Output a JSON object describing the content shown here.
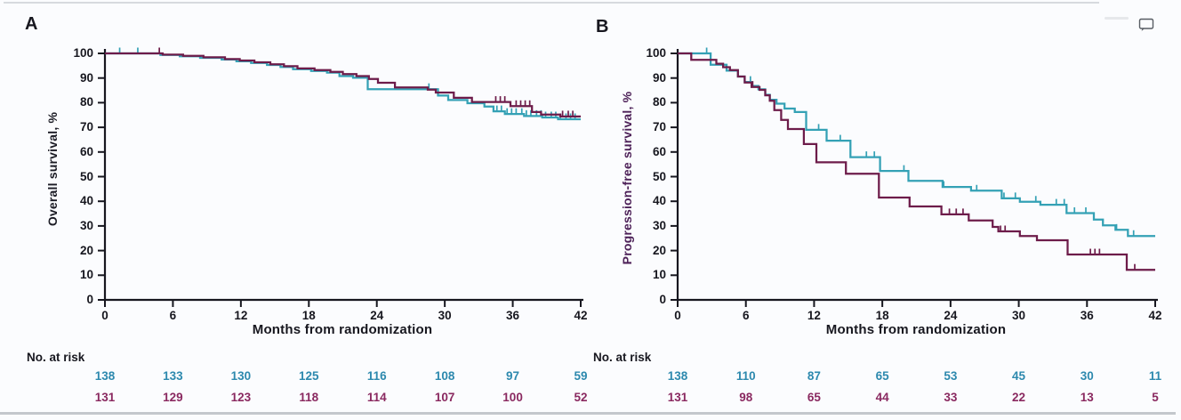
{
  "window": {
    "background": "#fbfcfe",
    "top_edge_color": "#d7dade",
    "bottom_edge_color": "#c3c7cc",
    "comment_icon": "speech-bubble-outline",
    "comment_icon_color": "#575c63"
  },
  "axis_color": "#17171f",
  "chart_data": [
    {
      "type": "line",
      "subtype": "kaplan-meier-step",
      "panel_label": "A",
      "ylabel": "Overall survival, %",
      "ylabel_color": "#1b1b24",
      "xlabel": "Months from randomization",
      "xlim": [
        0,
        42
      ],
      "ylim": [
        0,
        100
      ],
      "xticks": [
        0,
        6,
        12,
        18,
        24,
        30,
        36,
        42
      ],
      "yticks": [
        0,
        10,
        20,
        30,
        40,
        50,
        60,
        70,
        80,
        90,
        100
      ],
      "grid": false,
      "legend": "none",
      "series": [
        {
          "name": "teal",
          "color": "#34a1b5",
          "text_color": "#2d89ae",
          "steps": [
            [
              0,
              100
            ],
            [
              4.9,
              99.4
            ],
            [
              6.6,
              98.8
            ],
            [
              8.4,
              98.2
            ],
            [
              10.3,
              97.5
            ],
            [
              11.6,
              96.8
            ],
            [
              12.9,
              96.1
            ],
            [
              14.3,
              95.3
            ],
            [
              15.5,
              94.5
            ],
            [
              16.6,
              93.6
            ],
            [
              18.2,
              92.9
            ],
            [
              19.6,
              92.2
            ],
            [
              20.7,
              90.8
            ],
            [
              21.9,
              90.1
            ],
            [
              23.2,
              85.5
            ],
            [
              29.4,
              82.9
            ],
            [
              30.3,
              81.1
            ],
            [
              32.0,
              79.8
            ],
            [
              33.5,
              78.4
            ],
            [
              34.3,
              76.5
            ],
            [
              35.3,
              75.4
            ],
            [
              37.0,
              74.6
            ],
            [
              38.6,
              74.0
            ],
            [
              40.0,
              73.3
            ]
          ],
          "censor_months": [
            1.3,
            2.9,
            28.6,
            34.6,
            35.0,
            35.5,
            35.9,
            36.3,
            36.8,
            37.2,
            37.6,
            38.1,
            38.5,
            38.9,
            39.4,
            39.8,
            40.2,
            40.7,
            41.1,
            41.5
          ]
        },
        {
          "name": "maroon",
          "color": "#6d1c4a",
          "text_color": "#8a2960",
          "steps": [
            [
              0,
              100
            ],
            [
              5.1,
              99.5
            ],
            [
              6.9,
              99.0
            ],
            [
              8.7,
              98.4
            ],
            [
              10.6,
              97.7
            ],
            [
              11.9,
              97.1
            ],
            [
              13.2,
              96.4
            ],
            [
              14.6,
              95.6
            ],
            [
              15.8,
              94.8
            ],
            [
              17.0,
              93.9
            ],
            [
              18.5,
              93.2
            ],
            [
              19.9,
              92.5
            ],
            [
              21.0,
              91.6
            ],
            [
              22.2,
              90.8
            ],
            [
              23.3,
              89.6
            ],
            [
              24.1,
              88.1
            ],
            [
              25.6,
              86.2
            ],
            [
              28.5,
              85.3
            ],
            [
              29.2,
              84.1
            ],
            [
              30.8,
              82.0
            ],
            [
              32.4,
              80.3
            ],
            [
              35.8,
              78.6
            ],
            [
              37.7,
              76.2
            ],
            [
              38.5,
              75.2
            ],
            [
              40.2,
              74.4
            ]
          ],
          "censor_months": [
            4.8,
            34.5,
            34.9,
            35.3,
            36.3,
            36.7,
            37.1,
            37.5,
            40.4,
            40.9,
            41.3
          ]
        }
      ],
      "no_at_risk": {
        "label": "No. at risk",
        "rows": [
          {
            "series": "teal",
            "values": [
              138,
              133,
              130,
              125,
              116,
              108,
              97,
              59
            ]
          },
          {
            "series": "maroon",
            "values": [
              131,
              129,
              123,
              118,
              114,
              107,
              100,
              52
            ]
          }
        ]
      }
    },
    {
      "type": "line",
      "subtype": "kaplan-meier-step",
      "panel_label": "B",
      "ylabel": "Progression-free survival, %",
      "ylabel_color": "#4d2158",
      "xlabel": "Months from randomization",
      "xlim": [
        0,
        42
      ],
      "ylim": [
        0,
        100
      ],
      "xticks": [
        0,
        6,
        12,
        18,
        24,
        30,
        36,
        42
      ],
      "yticks": [
        0,
        10,
        20,
        30,
        40,
        50,
        60,
        70,
        80,
        90,
        100
      ],
      "grid": false,
      "legend": "none",
      "series": [
        {
          "name": "teal",
          "color": "#34a1b5",
          "text_color": "#2d89ae",
          "steps": [
            [
              0,
              100
            ],
            [
              2.9,
              95.4
            ],
            [
              4.3,
              93.0
            ],
            [
              5.3,
              90.6
            ],
            [
              5.9,
              88.4
            ],
            [
              6.5,
              86.8
            ],
            [
              7.1,
              85.4
            ],
            [
              7.7,
              83.2
            ],
            [
              8.1,
              81.2
            ],
            [
              8.7,
              79.6
            ],
            [
              9.4,
              77.6
            ],
            [
              10.3,
              76.2
            ],
            [
              11.3,
              69.0
            ],
            [
              13.1,
              64.6
            ],
            [
              15.2,
              57.9
            ],
            [
              17.8,
              52.3
            ],
            [
              20.3,
              48.3
            ],
            [
              23.3,
              45.8
            ],
            [
              25.8,
              44.3
            ],
            [
              28.5,
              41.2
            ],
            [
              30.1,
              39.8
            ],
            [
              31.9,
              38.6
            ],
            [
              34.2,
              35.2
            ],
            [
              36.6,
              32.6
            ],
            [
              37.4,
              30.2
            ],
            [
              38.5,
              28.4
            ],
            [
              39.6,
              25.9
            ]
          ],
          "censor_months": [
            2.55,
            6.4,
            12.4,
            14.3,
            16.6,
            17.3,
            19.9,
            23.4,
            26.3,
            28.7,
            29.7,
            31.5,
            33.3,
            34.0,
            34.9,
            35.9,
            38.6,
            40.1
          ]
        },
        {
          "name": "maroon",
          "color": "#6d1c4a",
          "text_color": "#8a2960",
          "steps": [
            [
              0,
              100
            ],
            [
              1.2,
              97.4
            ],
            [
              3.4,
              95.8
            ],
            [
              4.0,
              94.4
            ],
            [
              4.6,
              93.2
            ],
            [
              5.3,
              90.6
            ],
            [
              5.9,
              88.2
            ],
            [
              6.5,
              86.4
            ],
            [
              7.2,
              85.2
            ],
            [
              7.7,
              83.0
            ],
            [
              8.1,
              80.8
            ],
            [
              8.5,
              77.0
            ],
            [
              9.1,
              73.0
            ],
            [
              9.7,
              69.3
            ],
            [
              11.1,
              63.2
            ],
            [
              12.2,
              55.8
            ],
            [
              14.8,
              51.2
            ],
            [
              17.7,
              41.5
            ],
            [
              20.4,
              37.9
            ],
            [
              23.2,
              34.7
            ],
            [
              25.6,
              32.2
            ],
            [
              27.7,
              29.6
            ],
            [
              28.2,
              27.8
            ],
            [
              30.1,
              25.9
            ],
            [
              31.6,
              24.2
            ],
            [
              34.3,
              18.4
            ],
            [
              39.5,
              12.2
            ]
          ],
          "censor_months": [
            6.6,
            23.9,
            24.5,
            25.1,
            28.4,
            28.8,
            36.3,
            36.7,
            37.1,
            40.2
          ]
        }
      ],
      "no_at_risk": {
        "label": "No. at risk",
        "rows": [
          {
            "series": "teal",
            "values": [
              138,
              110,
              87,
              65,
              53,
              45,
              30,
              11
            ]
          },
          {
            "series": "maroon",
            "values": [
              131,
              98,
              65,
              44,
              33,
              22,
              13,
              5
            ]
          }
        ]
      }
    }
  ]
}
